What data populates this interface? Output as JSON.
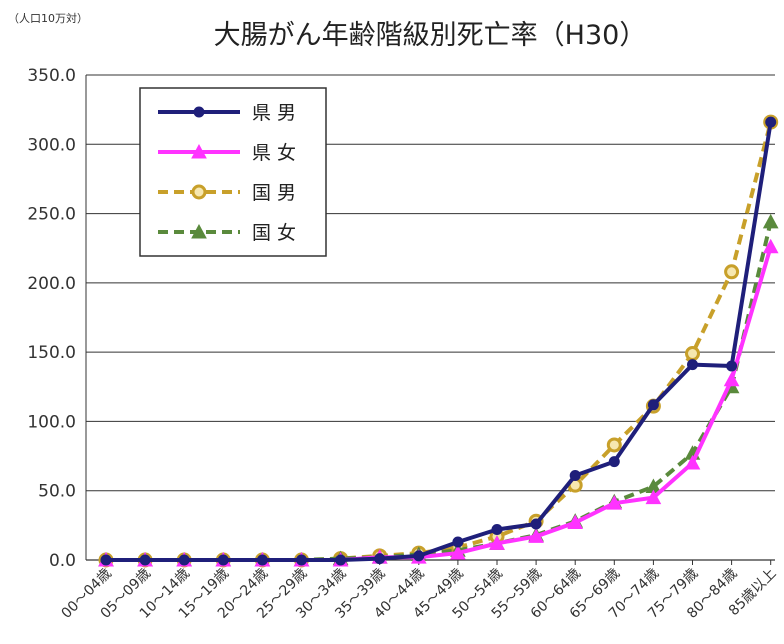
{
  "chart_data": {
    "type": "line",
    "title": "大腸がん年齢階級別死亡率（H30）",
    "unit_label": "（人口10万対）",
    "ylim": [
      0,
      350
    ],
    "y_ticks": [
      "0.0",
      "50.0",
      "100.0",
      "150.0",
      "200.0",
      "250.0",
      "300.0",
      "350.0"
    ],
    "grid": true,
    "legend_position": "top-left",
    "categories": [
      "00～04歳",
      "05～09歳",
      "10～14歳",
      "15～19歳",
      "20～24歳",
      "25～29歳",
      "30～34歳",
      "35～39歳",
      "40～44歳",
      "45～49歳",
      "50～54歳",
      "55～59歳",
      "60～64歳",
      "65～69歳",
      "70～74歳",
      "75～79歳",
      "80～84歳",
      "85歳以上"
    ],
    "series": [
      {
        "name": "県 男",
        "color": "#1f1f7a",
        "dash": "solid",
        "marker": "circle",
        "values": [
          0,
          0,
          0,
          0,
          0,
          0,
          0,
          1,
          3,
          13,
          22,
          26,
          61,
          71,
          112,
          141,
          140,
          316
        ]
      },
      {
        "name": "県 女",
        "color": "#ff33ff",
        "dash": "solid",
        "marker": "triangle",
        "values": [
          0,
          0,
          0,
          0,
          0,
          0,
          0,
          2,
          2,
          5,
          12,
          17,
          27,
          41,
          45,
          70,
          130,
          226
        ]
      },
      {
        "name": "国 男",
        "color": "#c8a02a",
        "dash": "dashed",
        "marker": "open-circle",
        "values": [
          0,
          0,
          0,
          0,
          0,
          0,
          1,
          3,
          5,
          9,
          17,
          28,
          54,
          83,
          111,
          149,
          208,
          316
        ]
      },
      {
        "name": "国 女",
        "color": "#5a8a3c",
        "dash": "dashed",
        "marker": "triangle",
        "values": [
          0,
          0,
          0,
          0,
          0,
          0,
          1,
          2,
          4,
          7,
          12,
          18,
          28,
          42,
          53,
          77,
          125,
          244
        ]
      }
    ]
  }
}
